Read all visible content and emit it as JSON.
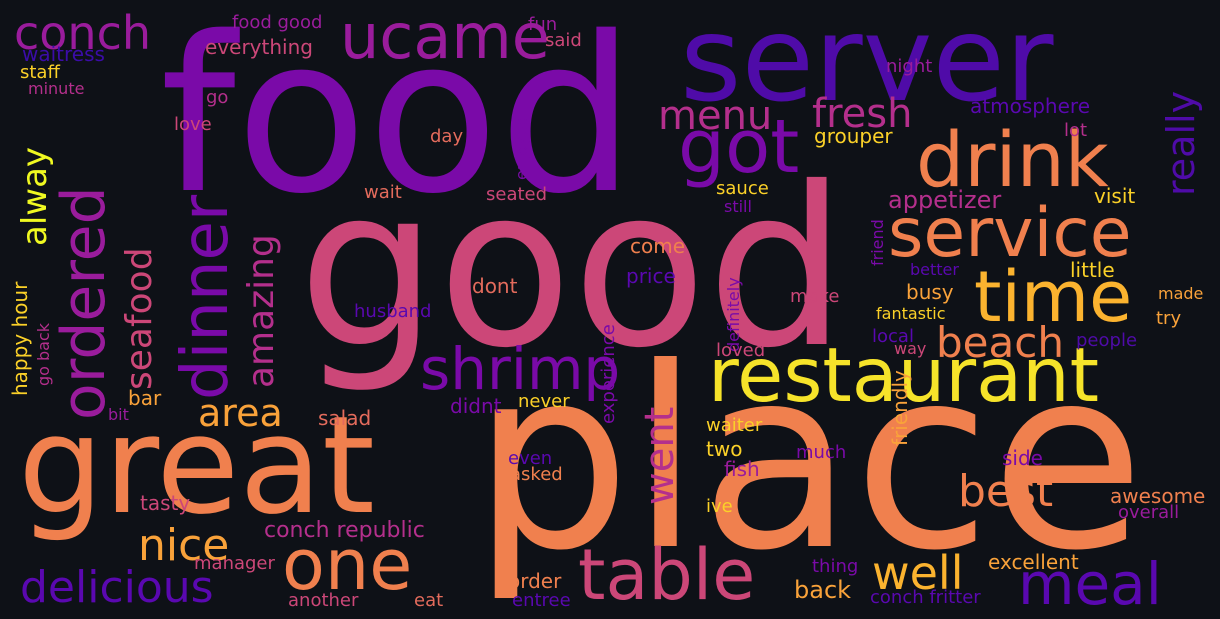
{
  "palette": {
    "background": "#0e1117",
    "indigo": "#3b0ca8",
    "blue_violet": "#5a08b0",
    "violet": "#7a0aa8",
    "purple": "#9a1c9c",
    "magenta": "#b42f8c",
    "pink": "#cc4778",
    "coral": "#e36b5c",
    "orange": "#f0804e",
    "amber": "#f9a23a",
    "gold": "#fbd128",
    "yellow": "#f0f921"
  },
  "words": [
    {
      "text": "food",
      "color": "#7a0aa8"
    },
    {
      "text": "good",
      "color": "#cc4778"
    },
    {
      "text": "place",
      "color": "#f0804e"
    },
    {
      "text": "great",
      "color": "#f0804e"
    },
    {
      "text": "server",
      "color": "#4f0ba8"
    },
    {
      "text": "restaurant",
      "color": "#f6e32a"
    },
    {
      "text": "drink",
      "color": "#f0804e"
    },
    {
      "text": "table",
      "color": "#cc4778"
    },
    {
      "text": "service",
      "color": "#f0804e"
    },
    {
      "text": "time",
      "color": "#fbb32f"
    },
    {
      "text": "one",
      "color": "#f0804e"
    },
    {
      "text": "ordered",
      "color": "#9a1c9c"
    },
    {
      "text": "dinner",
      "color": "#7a0aa8"
    },
    {
      "text": "ucame",
      "color": "#9a1c9c"
    },
    {
      "text": "got",
      "color": "#7a0aa8"
    },
    {
      "text": "shrimp",
      "color": "#7a0aa8"
    },
    {
      "text": "meal",
      "color": "#5a08b0"
    },
    {
      "text": "well",
      "color": "#fbb32f"
    },
    {
      "text": "conch",
      "color": "#9a1c9c"
    },
    {
      "text": "nice",
      "color": "#f9a23a"
    },
    {
      "text": "delicious",
      "color": "#5a08b0"
    },
    {
      "text": "beach",
      "color": "#f0804e"
    },
    {
      "text": "best",
      "color": "#f0804e"
    },
    {
      "text": "fresh",
      "color": "#b42f8c"
    },
    {
      "text": "menu",
      "color": "#b42f8c"
    },
    {
      "text": "area",
      "color": "#f9a23a"
    },
    {
      "text": "went",
      "color": "#b42f8c"
    },
    {
      "text": "seafood",
      "color": "#cc4778"
    },
    {
      "text": "amazing",
      "color": "#b42f8c"
    },
    {
      "text": "alway",
      "color": "#f0f921"
    },
    {
      "text": "really",
      "color": "#4f0ba8"
    },
    {
      "text": "appetizer",
      "color": "#b42f8c"
    },
    {
      "text": "atmosphere",
      "color": "#5a08b0"
    },
    {
      "text": "grouper",
      "color": "#fbd128"
    },
    {
      "text": "everything",
      "color": "#cc4778"
    },
    {
      "text": "food good",
      "color": "#9a1c9c"
    },
    {
      "text": "fun",
      "color": "#9a1c9c"
    },
    {
      "text": "said",
      "color": "#cc4778"
    },
    {
      "text": "night",
      "color": "#9a1c9c"
    },
    {
      "text": "waitress",
      "color": "#3b0ca8"
    },
    {
      "text": "staff",
      "color": "#fbd128"
    },
    {
      "text": "minute",
      "color": "#b42f8c"
    },
    {
      "text": "go",
      "color": "#b42f8c"
    },
    {
      "text": "love",
      "color": "#cc4778"
    },
    {
      "text": "day",
      "color": "#e36b5c"
    },
    {
      "text": "enjoyed",
      "color": "#7a0aa8"
    },
    {
      "text": "lot",
      "color": "#b42f8c"
    },
    {
      "text": "visit",
      "color": "#fbd128"
    },
    {
      "text": "sauce",
      "color": "#fbd128"
    },
    {
      "text": "still",
      "color": "#7a0aa8"
    },
    {
      "text": "wait",
      "color": "#e36b5c"
    },
    {
      "text": "seated",
      "color": "#cc4778"
    },
    {
      "text": "come",
      "color": "#f0804e"
    },
    {
      "text": "price",
      "color": "#5a08b0"
    },
    {
      "text": "dont",
      "color": "#e36b5c"
    },
    {
      "text": "definitely",
      "color": "#7a0aa8"
    },
    {
      "text": "friend",
      "color": "#7a0aa8"
    },
    {
      "text": "better",
      "color": "#5a08b0"
    },
    {
      "text": "little",
      "color": "#fbd128"
    },
    {
      "text": "busy",
      "color": "#f9a23a"
    },
    {
      "text": "make",
      "color": "#cc4778"
    },
    {
      "text": "made",
      "color": "#f9a23a"
    },
    {
      "text": "fantastic",
      "color": "#fbd128"
    },
    {
      "text": "try",
      "color": "#f9a23a"
    },
    {
      "text": "local",
      "color": "#5a08b0"
    },
    {
      "text": "people",
      "color": "#4f0ba8"
    },
    {
      "text": "way",
      "color": "#cc4778"
    },
    {
      "text": "loved",
      "color": "#cc4778"
    },
    {
      "text": "husband",
      "color": "#5a08b0"
    },
    {
      "text": "happy hour",
      "color": "#fbd128"
    },
    {
      "text": "go back",
      "color": "#b42f8c"
    },
    {
      "text": "bar",
      "color": "#f9a23a"
    },
    {
      "text": "bit",
      "color": "#9a1c9c"
    },
    {
      "text": "salad",
      "color": "#e36b5c"
    },
    {
      "text": "didnt",
      "color": "#7a0aa8"
    },
    {
      "text": "never",
      "color": "#fbd128"
    },
    {
      "text": "waiter",
      "color": "#fbd128"
    },
    {
      "text": "two",
      "color": "#fbd128"
    },
    {
      "text": "fish",
      "color": "#9a1c9c"
    },
    {
      "text": "much",
      "color": "#7a0aa8"
    },
    {
      "text": "side",
      "color": "#7a0aa8"
    },
    {
      "text": "even",
      "color": "#5a08b0"
    },
    {
      "text": "asked",
      "color": "#f0804e"
    },
    {
      "text": "experience",
      "color": "#7a0aa8"
    },
    {
      "text": "friendly",
      "color": "#f9a23a"
    },
    {
      "text": "awesome",
      "color": "#f0804e"
    },
    {
      "text": "overall",
      "color": "#9a1c9c"
    },
    {
      "text": "tasty",
      "color": "#cc4778"
    },
    {
      "text": "ive",
      "color": "#fbd128"
    },
    {
      "text": "conch republic",
      "color": "#b42f8c"
    },
    {
      "text": "excellent",
      "color": "#f9a23a"
    },
    {
      "text": "manager",
      "color": "#cc4778"
    },
    {
      "text": "order",
      "color": "#f0804e"
    },
    {
      "text": "thing",
      "color": "#7a0aa8"
    },
    {
      "text": "back",
      "color": "#f9a23a"
    },
    {
      "text": "another",
      "color": "#cc4778"
    },
    {
      "text": "eat",
      "color": "#e36b5c"
    },
    {
      "text": "entree",
      "color": "#5a08b0"
    },
    {
      "text": "conch fritter",
      "color": "#5a08b0"
    }
  ]
}
